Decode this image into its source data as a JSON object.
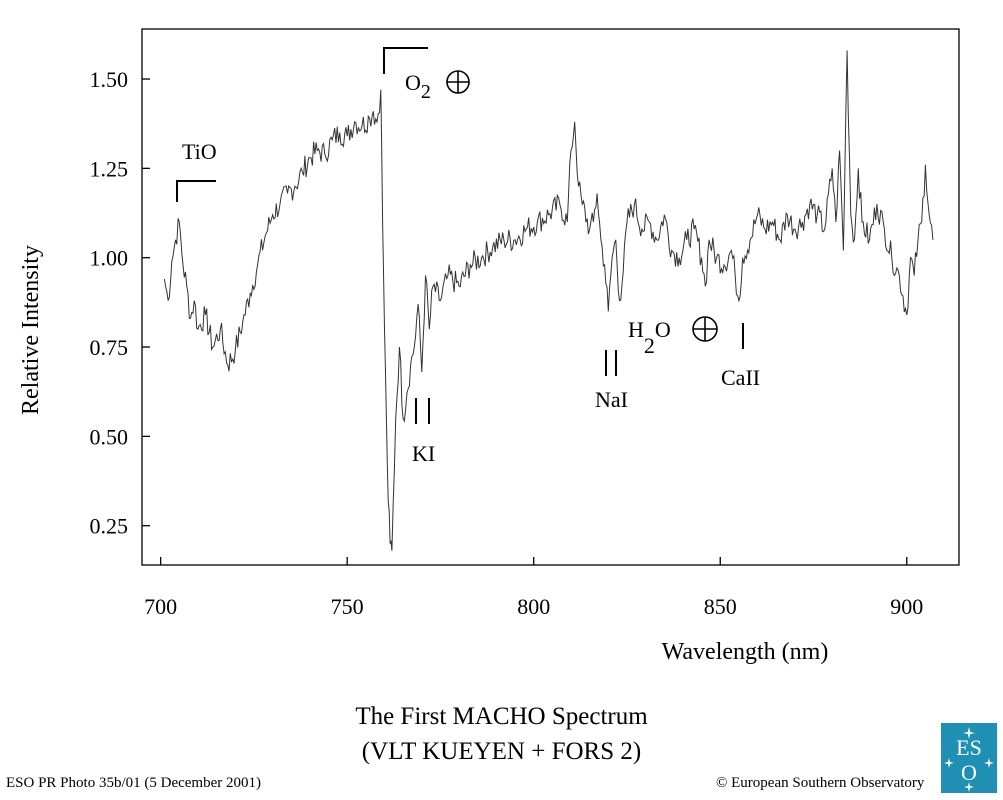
{
  "chart_data": {
    "type": "line",
    "title": "The First MACHO Spectrum",
    "subtitle": "(VLT KUEYEN + FORS 2)",
    "xlabel": "Wavelength  (nm)",
    "ylabel": "Relative Intensity",
    "xlim": [
      695,
      914
    ],
    "ylim": [
      0.14,
      1.64
    ],
    "x_ticks": [
      700,
      750,
      800,
      850,
      900
    ],
    "x_tick_labels": [
      "700",
      "750",
      "800",
      "850",
      "900"
    ],
    "y_ticks": [
      0.25,
      0.5,
      0.75,
      1.0,
      1.25,
      1.5
    ],
    "y_tick_labels": [
      "0.25",
      "0.50",
      "0.75",
      "1.00",
      "1.25",
      "1.50"
    ],
    "grid": false,
    "series": [
      {
        "x": [
          701,
          702,
          703,
          704,
          705,
          706,
          707,
          708,
          709,
          710,
          712,
          714,
          716,
          718,
          720,
          722,
          724,
          726,
          728,
          730,
          732,
          734,
          736,
          738,
          740,
          742,
          744,
          746,
          748,
          750,
          752,
          754,
          756,
          757,
          758,
          759,
          759.5,
          760,
          760.5,
          761,
          761.5,
          762,
          763,
          764,
          765,
          766,
          767,
          768,
          769,
          770,
          771,
          772,
          773,
          775,
          777,
          780,
          783,
          786,
          789,
          792,
          795,
          798,
          801,
          804,
          807,
          809,
          810,
          811,
          812,
          813,
          815,
          816,
          817,
          818,
          819,
          820,
          821,
          822,
          823,
          824,
          825,
          827,
          829,
          831,
          833,
          835,
          837,
          839,
          841,
          843,
          845,
          846,
          847,
          849,
          851,
          853,
          854,
          855,
          856,
          858,
          860,
          862,
          864,
          866,
          868,
          870,
          872,
          874,
          876,
          878,
          880,
          881,
          882,
          883,
          884,
          885,
          886,
          887,
          888,
          890,
          892,
          894,
          896,
          898,
          900,
          901,
          902,
          903,
          904,
          905,
          906,
          907
        ],
        "y": [
          0.94,
          0.88,
          0.99,
          1.05,
          1.1,
          0.98,
          0.92,
          0.83,
          0.88,
          0.8,
          0.84,
          0.75,
          0.8,
          0.7,
          0.74,
          0.82,
          0.9,
          0.98,
          1.06,
          1.12,
          1.15,
          1.18,
          1.2,
          1.24,
          1.28,
          1.3,
          1.29,
          1.33,
          1.35,
          1.34,
          1.38,
          1.37,
          1.39,
          1.41,
          1.38,
          1.47,
          1.1,
          0.8,
          0.55,
          0.32,
          0.2,
          0.18,
          0.55,
          0.75,
          0.55,
          0.62,
          0.7,
          0.75,
          0.87,
          0.68,
          0.95,
          0.8,
          0.92,
          0.88,
          0.95,
          0.92,
          0.98,
          1.0,
          1.03,
          1.05,
          1.05,
          1.08,
          1.1,
          1.12,
          1.15,
          1.1,
          1.3,
          1.38,
          1.2,
          1.15,
          1.08,
          1.1,
          1.18,
          1.05,
          0.98,
          0.85,
          1.0,
          1.05,
          0.88,
          0.96,
          1.1,
          1.15,
          1.08,
          1.1,
          1.05,
          1.12,
          1.02,
          1.0,
          1.05,
          1.08,
          1.0,
          0.92,
          1.05,
          1.0,
          0.98,
          1.02,
          0.95,
          0.88,
          1.0,
          1.05,
          1.12,
          1.08,
          1.1,
          1.05,
          1.12,
          1.08,
          1.1,
          1.15,
          1.12,
          1.08,
          1.25,
          1.1,
          1.3,
          1.02,
          1.58,
          1.12,
          1.05,
          1.25,
          1.1,
          1.05,
          1.15,
          1.08,
          1.0,
          0.95,
          0.84,
          1.0,
          0.95,
          1.05,
          1.1,
          1.26,
          1.12,
          1.05
        ]
      }
    ],
    "annotations": [
      {
        "label": "TiO",
        "kind": "bracket",
        "x1": 704,
        "x2": 714,
        "y": 1.2
      },
      {
        "label": "O",
        "sub": "2",
        "symbol": "⊕",
        "kind": "bracket",
        "x1": 758.5,
        "x2": 770,
        "y": 1.57
      },
      {
        "label": "KI",
        "kind": "ticks",
        "xs": [
          768,
          771
        ],
        "y_top": 0.6,
        "y_bot": 0.53
      },
      {
        "label": "NaI",
        "kind": "ticks",
        "xs": [
          819,
          821
        ],
        "y_top": 0.71,
        "y_bot": 0.64
      },
      {
        "label": "H",
        "sub": "2",
        "label2": "O",
        "symbol": "⊕",
        "kind": "text"
      },
      {
        "label": "CaII",
        "kind": "ticks",
        "xs": [
          855
        ],
        "y_top": 0.78,
        "y_bot": 0.7
      }
    ]
  },
  "footer": {
    "left": "ESO PR Photo 35b/01 (5 December 2001)",
    "right": "© European Southern Observatory"
  },
  "logo": {
    "text_top": "ES",
    "text_bottom": "O",
    "color": "#1f8fb4"
  },
  "colors": {
    "line": "#333333",
    "frame": "#000000",
    "background": "#ffffff"
  }
}
